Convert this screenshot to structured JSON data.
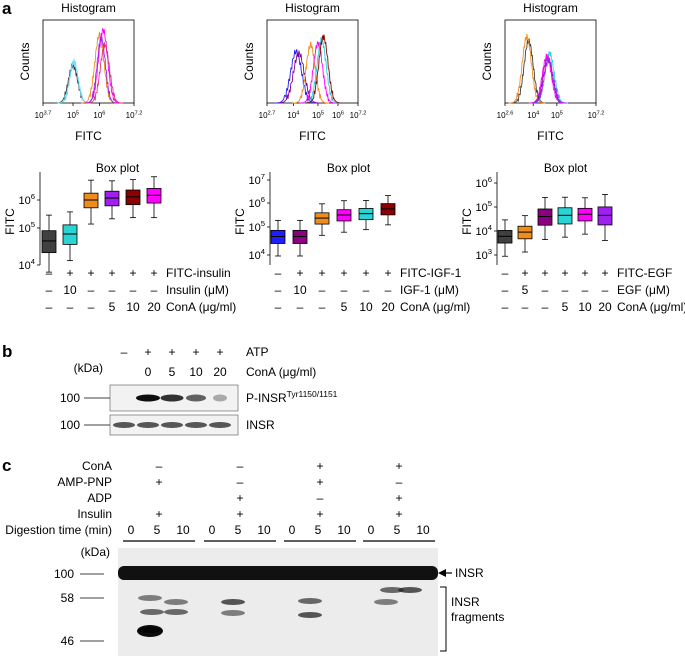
{
  "panel_a": {
    "label": "a",
    "histograms": [
      {
        "title": "Histogram",
        "ylabel": "Counts",
        "xlabel": "FITC",
        "xticks": [
          "10^3.7",
          "10^5",
          "10^6",
          "10^7.2"
        ]
      },
      {
        "title": "Histogram",
        "ylabel": "Counts",
        "xlabel": "FITC",
        "xticks": [
          "10^2.7",
          "10^4",
          "10^5",
          "10^6",
          "10^7.2"
        ]
      },
      {
        "title": "Histogram",
        "ylabel": "Counts",
        "xlabel": "FITC",
        "xticks": [
          "10^2.6",
          "10^4",
          "10^5",
          "10^7.2"
        ]
      }
    ],
    "boxplots": [
      {
        "title": "Box plot",
        "ylabel": "FITC",
        "yticks": [
          "10^4",
          "10^5",
          "10^6"
        ],
        "rows": [
          {
            "signs": [
              "–",
              "+",
              "+",
              "+",
              "+",
              "+"
            ],
            "label": "FITC-insulin"
          },
          {
            "signs": [
              "–",
              "10",
              "–",
              "–",
              "–",
              "–"
            ],
            "label": "Insulin (μM)"
          },
          {
            "signs": [
              "–",
              "–",
              "–",
              "5",
              "10",
              "20"
            ],
            "label": "ConA (μg/ml)"
          }
        ]
      },
      {
        "title": "Box plot",
        "ylabel": "FITC",
        "yticks": [
          "10^4",
          "10^5",
          "10^6",
          "10^7"
        ],
        "rows": [
          {
            "signs": [
              "–",
              "+",
              "+",
              "+",
              "+",
              "+"
            ],
            "label": "FITC-IGF-1"
          },
          {
            "signs": [
              "–",
              "10",
              "–",
              "–",
              "–",
              "–"
            ],
            "label": "IGF-1 (μM)"
          },
          {
            "signs": [
              "–",
              "–",
              "–",
              "5",
              "10",
              "20"
            ],
            "label": "ConA (μg/ml)"
          }
        ]
      },
      {
        "title": "Box plot",
        "ylabel": "FITC",
        "yticks": [
          "10^3",
          "10^4",
          "10^5",
          "10^6"
        ],
        "rows": [
          {
            "signs": [
              "–",
              "+",
              "+",
              "+",
              "+",
              "+"
            ],
            "label": "FITC-EGF"
          },
          {
            "signs": [
              "–",
              "5",
              "–",
              "–",
              "–",
              "–"
            ],
            "label": "EGF (μM)"
          },
          {
            "signs": [
              "–",
              "–",
              "–",
              "5",
              "10",
              "20"
            ],
            "label": "ConA (μg/ml)"
          }
        ]
      }
    ]
  },
  "panel_b": {
    "label": "b",
    "kda": "(kDa)",
    "atp_label": "ATP",
    "atp_signs": [
      "–",
      "+",
      "+",
      "+",
      "+"
    ],
    "cona_label": "ConA (μg/ml)",
    "cona_values": [
      "0",
      "5",
      "10",
      "20"
    ],
    "marker": "100",
    "band1_main": "P-INSR",
    "band1_sup": "Tyr1150/1151",
    "band2": "INSR"
  },
  "panel_c": {
    "label": "c",
    "row_labels": [
      "ConA",
      "AMP-PNP",
      "ADP",
      "Insulin",
      "Digestion time (min)"
    ],
    "groups": [
      {
        "cona": "–",
        "amppnp": "+",
        "adp": "",
        "insulin": "+"
      },
      {
        "cona": "–",
        "amppnp": "–",
        "adp": "+",
        "insulin": "+"
      },
      {
        "cona": "+",
        "amppnp": "+",
        "adp": "–",
        "insulin": "+"
      },
      {
        "cona": "+",
        "amppnp": "–",
        "adp": "+",
        "insulin": "+"
      }
    ],
    "times": [
      "0",
      "5",
      "10"
    ],
    "kda": "(kDa)",
    "markers": [
      "100",
      "58",
      "46"
    ],
    "insr": "INSR",
    "fragments": [
      "INSR",
      "fragments"
    ]
  },
  "chart_data": [
    {
      "type": "box",
      "title": "Box plot",
      "ylabel": "FITC",
      "yscale": "log",
      "ylim": [
        10000,
        10000000
      ],
      "categories": [
        "1",
        "2",
        "3",
        "4",
        "5",
        "6"
      ],
      "medians": [
        55000,
        90000,
        1000000,
        1150000,
        1250000,
        1400000
      ],
      "colors": [
        "#404040",
        "#2ad4d4",
        "#f08c1e",
        "#a020f0",
        "#8b0000",
        "#ff00ff"
      ]
    },
    {
      "type": "box",
      "title": "Box plot",
      "ylabel": "FITC",
      "yscale": "log",
      "ylim": [
        10000,
        10000000
      ],
      "categories": [
        "1",
        "2",
        "3",
        "4",
        "5",
        "6"
      ],
      "medians": [
        55000,
        55000,
        300000,
        400000,
        450000,
        700000
      ],
      "colors": [
        "#1e1eff",
        "#8b0080",
        "#f08c1e",
        "#ff00ff",
        "#2ad4d4",
        "#8b0000"
      ]
    },
    {
      "type": "box",
      "title": "Box plot",
      "ylabel": "FITC",
      "yscale": "log",
      "ylim": [
        1000,
        1000000
      ],
      "categories": [
        "1",
        "2",
        "3",
        "4",
        "5",
        "6"
      ],
      "medians": [
        6000,
        9000,
        40000,
        45000,
        50000,
        45000
      ],
      "colors": [
        "#404040",
        "#f08c1e",
        "#8b0080",
        "#2ad4d4",
        "#ff00ff",
        "#a020f0"
      ]
    }
  ]
}
